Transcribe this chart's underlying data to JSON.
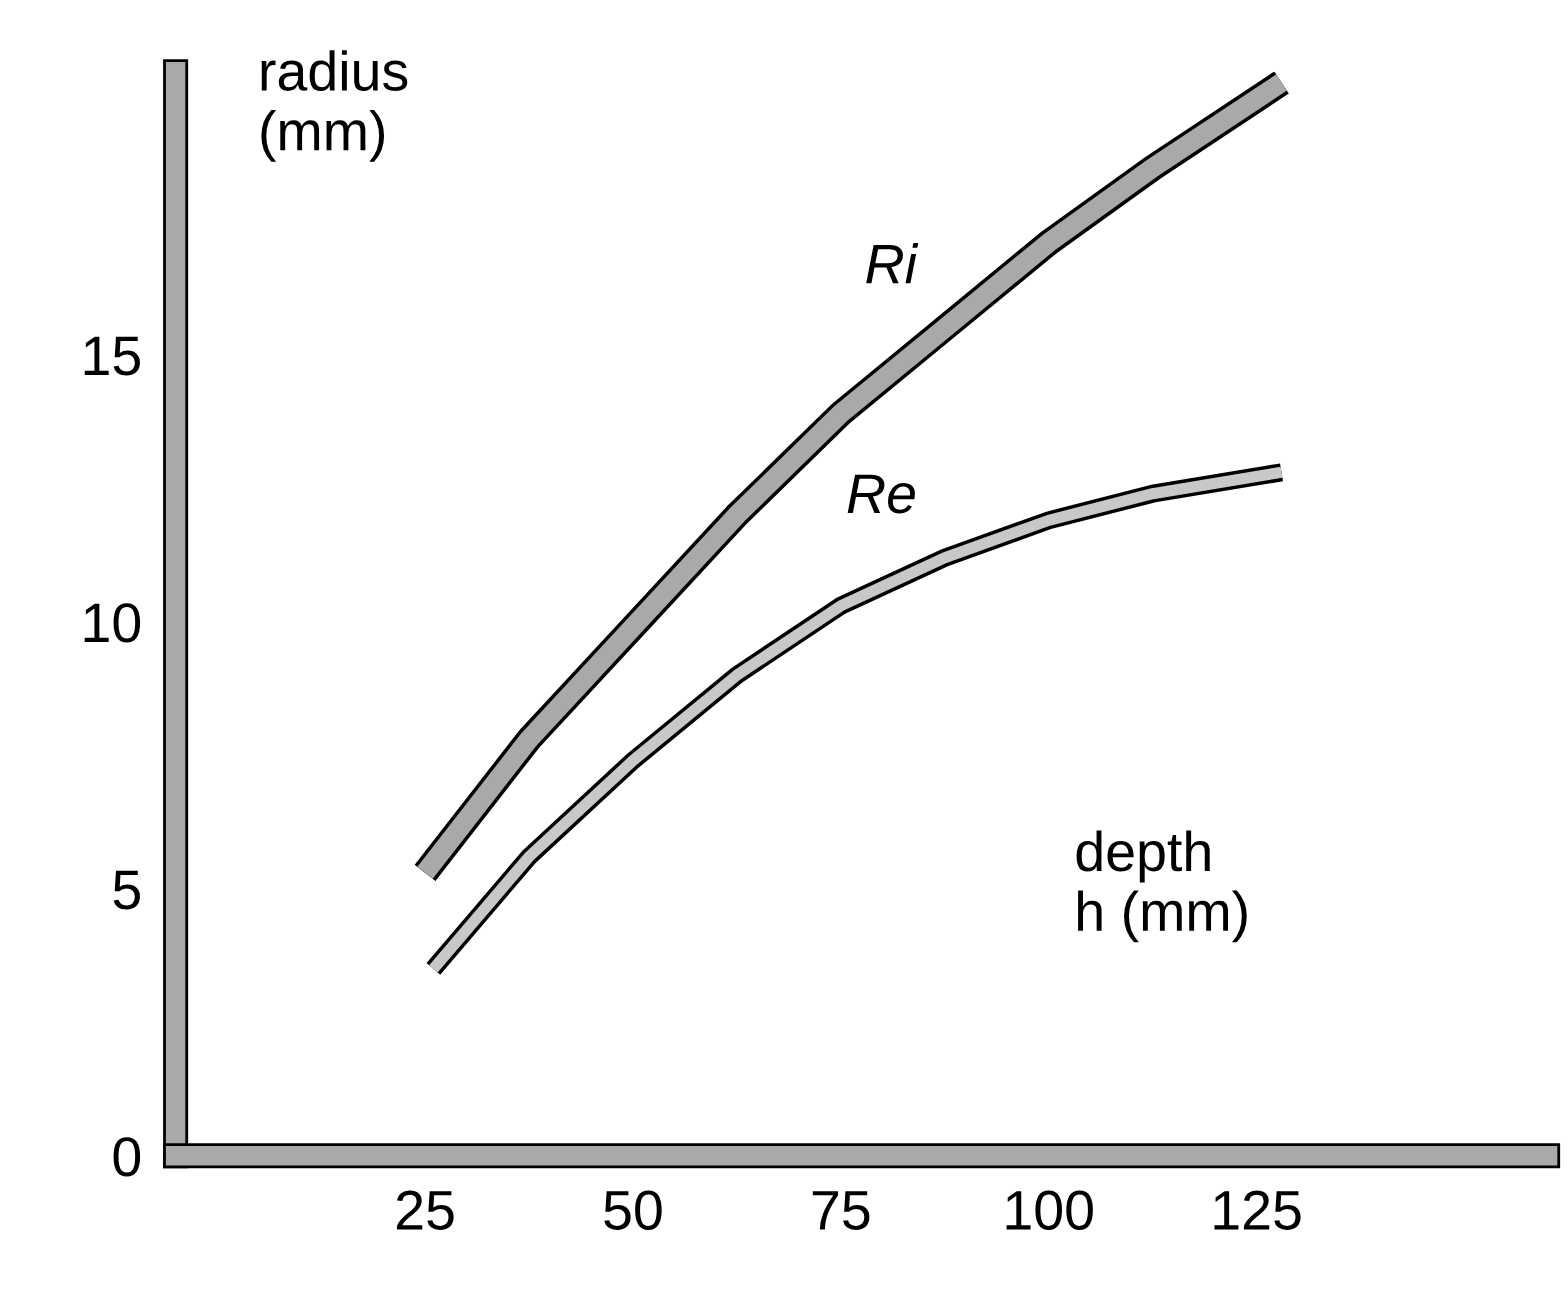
{
  "chart_data": {
    "type": "line",
    "xlabel": "depth\nh (mm)",
    "ylabel": "radius\n(mm)",
    "xlim": [
      -5,
      160
    ],
    "ylim": [
      0,
      20.3
    ],
    "xticks": [
      25,
      50,
      75,
      100,
      125
    ],
    "yticks": [
      0,
      5,
      10,
      15
    ],
    "grid": false,
    "legend": false,
    "marker": "none",
    "line_style": "solid",
    "series": [
      {
        "name": "Ri",
        "color": "#a9a9a9",
        "x": [
          25,
          37.5,
          50,
          62.5,
          75,
          87.5,
          100,
          112.5,
          128
        ],
        "values": [
          5.3,
          7.8,
          9.9,
          12.0,
          13.9,
          15.5,
          17.1,
          18.5,
          20.1
        ]
      },
      {
        "name": "Re",
        "color": "#c8c8c8",
        "x": [
          26,
          37.5,
          50,
          62.5,
          75,
          87.5,
          100,
          112.5,
          128
        ],
        "values": [
          3.5,
          5.6,
          7.4,
          9.0,
          10.3,
          11.2,
          11.9,
          12.4,
          12.8
        ]
      }
    ]
  }
}
